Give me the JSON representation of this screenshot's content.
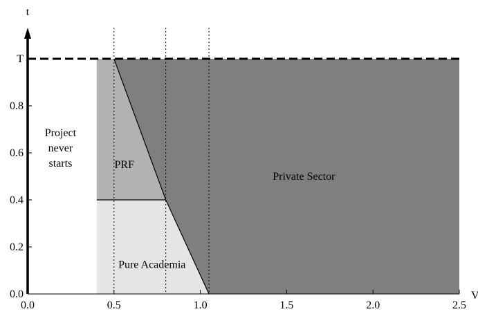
{
  "chart_data": {
    "type": "area",
    "xlabel": "V",
    "ylabel": "t",
    "xlim": [
      0,
      2.5
    ],
    "ylim": [
      0,
      1.0
    ],
    "x_ticks": [
      "0.0",
      "0.5",
      "1.0",
      "1.5",
      "2.0",
      "2.5"
    ],
    "y_ticks": [
      "0.0",
      "0.2",
      "0.4",
      "0.6",
      "0.8",
      "T"
    ],
    "y_tick_values": [
      0,
      0.2,
      0.4,
      0.6,
      0.8,
      1.0
    ],
    "T_value": 1.0,
    "T_line_style": "dashed",
    "dotted_verticals": [
      0.5,
      0.8,
      1.05
    ],
    "regions": [
      {
        "name": "Project never starts",
        "label_lines": [
          "Project",
          "never",
          "starts"
        ],
        "color": "#ffffff",
        "polygon": [
          [
            0,
            0
          ],
          [
            0.4,
            0
          ],
          [
            0.4,
            1.0
          ],
          [
            0,
            1.0
          ]
        ],
        "label_at": [
          0.19,
          0.62
        ]
      },
      {
        "name": "PRF",
        "label_lines": [
          "PRF"
        ],
        "color": "#b2b2b2",
        "polygon": [
          [
            0.4,
            0.4
          ],
          [
            0.8,
            0.4
          ],
          [
            0.5,
            1.0
          ],
          [
            0.4,
            1.0
          ]
        ],
        "label_at": [
          0.56,
          0.55
        ]
      },
      {
        "name": "Pure Academia",
        "label_lines": [
          "Pure Academia"
        ],
        "color": "#e5e5e5",
        "polygon": [
          [
            0.4,
            0
          ],
          [
            1.05,
            0
          ],
          [
            0.8,
            0.4
          ],
          [
            0.4,
            0.4
          ]
        ],
        "label_at": [
          0.72,
          0.125
        ]
      },
      {
        "name": "Private Sector",
        "label_lines": [
          "Private Sector"
        ],
        "color": "#7f7f7f",
        "polygon": [
          [
            0.5,
            1.0
          ],
          [
            2.5,
            1.0
          ],
          [
            2.5,
            0
          ],
          [
            1.05,
            0
          ],
          [
            0.8,
            0.4
          ]
        ],
        "label_at": [
          1.6,
          0.5
        ]
      }
    ],
    "boundary_lines": [
      [
        [
          0.4,
          0.4
        ],
        [
          0.8,
          0.4
        ]
      ],
      [
        [
          0.5,
          1.0
        ],
        [
          0.8,
          0.4
        ]
      ],
      [
        [
          0.8,
          0.4
        ],
        [
          1.05,
          0
        ]
      ]
    ]
  }
}
